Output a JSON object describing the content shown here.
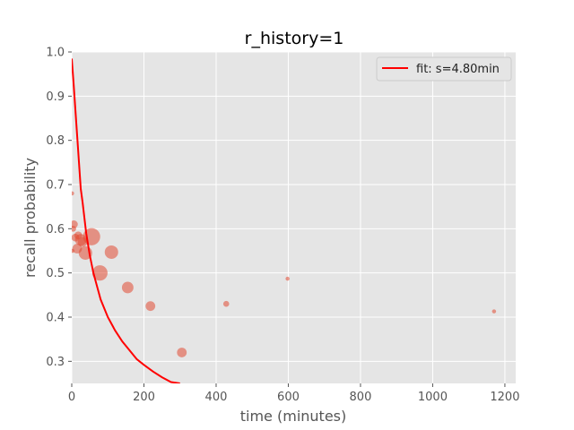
{
  "chart_data": {
    "type": "scatter",
    "title": "r_history=1",
    "xlabel": "time (minutes)",
    "ylabel": "recall probability",
    "xlim": [
      0,
      1230
    ],
    "ylim": [
      0.25,
      1.0
    ],
    "xticks": [
      0,
      200,
      400,
      600,
      800,
      1000,
      1200
    ],
    "yticks": [
      0.3,
      0.4,
      0.5,
      0.6,
      0.7,
      0.8,
      0.9,
      1.0
    ],
    "grid": true,
    "legend_position": "top-right",
    "colors": {
      "points": "#E24A33",
      "fit": "#FF0000",
      "plot_background": "#E5E5E5",
      "grid": "#FFFFFF"
    },
    "series": [
      {
        "kind": "scatter",
        "x": [
          1,
          2,
          4,
          6,
          10,
          15,
          18,
          25,
          30,
          38,
          55,
          78,
          110,
          155,
          218,
          305,
          428,
          598,
          1170
        ],
        "y": [
          0.68,
          0.55,
          0.6,
          0.61,
          0.58,
          0.555,
          0.585,
          0.575,
          0.57,
          0.545,
          0.582,
          0.5,
          0.547,
          0.467,
          0.425,
          0.32,
          0.43,
          0.487,
          0.413
        ],
        "size": [
          1,
          1,
          2,
          3,
          3,
          4,
          3,
          5,
          4,
          6,
          8,
          7,
          6,
          5,
          4,
          4,
          2,
          1,
          1
        ]
      },
      {
        "kind": "line",
        "name": "fit: s=4.80min",
        "x": [
          0,
          5,
          10,
          15,
          20,
          25,
          30,
          40,
          50,
          60,
          70,
          80,
          90,
          100,
          120,
          140,
          160,
          180,
          200,
          225,
          250,
          275,
          300
        ],
        "y": [
          0.985,
          0.93,
          0.87,
          0.81,
          0.75,
          0.69,
          0.66,
          0.59,
          0.54,
          0.5,
          0.47,
          0.44,
          0.42,
          0.4,
          0.37,
          0.345,
          0.325,
          0.305,
          0.292,
          0.277,
          0.264,
          0.253,
          0.25
        ]
      }
    ]
  }
}
